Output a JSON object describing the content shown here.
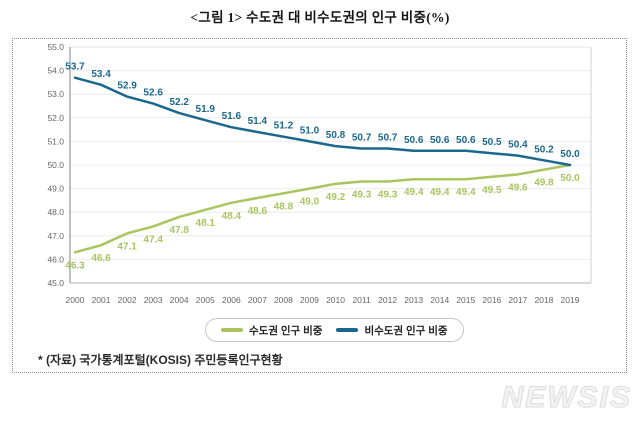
{
  "title": "<그림 1> 수도권 대 비수도권의 인구 비중(%)",
  "chart_data": {
    "type": "line",
    "title": "수도권 대 비수도권의 인구 비중(%)",
    "x": [
      "2000",
      "2001",
      "2002",
      "2003",
      "2004",
      "2005",
      "2006",
      "2007",
      "2008",
      "2009",
      "2010",
      "2011",
      "2012",
      "2013",
      "2014",
      "2015",
      "2016",
      "2017",
      "2018",
      "2019"
    ],
    "series": [
      {
        "name": "수도권 인구 비중",
        "color": "#a8c55e",
        "label_position": "below",
        "values": [
          46.3,
          46.6,
          47.1,
          47.4,
          47.8,
          48.1,
          48.4,
          48.6,
          48.8,
          49.0,
          49.2,
          49.3,
          49.3,
          49.4,
          49.4,
          49.4,
          49.5,
          49.6,
          49.8,
          50.0
        ]
      },
      {
        "name": "비수도권 인구 비중",
        "color": "#1b688f",
        "label_position": "above",
        "values": [
          53.7,
          53.4,
          52.9,
          52.6,
          52.2,
          51.9,
          51.6,
          51.4,
          51.2,
          51.0,
          50.8,
          50.7,
          50.7,
          50.6,
          50.6,
          50.6,
          50.5,
          50.4,
          50.2,
          50.0
        ]
      }
    ],
    "ylim": [
      45.0,
      55.0
    ],
    "ytick_step": 1.0,
    "ytick_labels": [
      "45.0",
      "46.0",
      "47.0",
      "48.0",
      "49.0",
      "50.0",
      "51.0",
      "52.0",
      "53.0",
      "54.0",
      "55.0"
    ],
    "grid": "horizontal",
    "legend_position": "bottom-center",
    "colors": {
      "grid_line": "#ececec",
      "axis_line": "#a6a6a6",
      "tick_text": "#666666"
    }
  },
  "footer": {
    "source_note": "* (자료) 국가통계포털(KOSIS) 주민등록인구현황"
  },
  "watermark": {
    "text": "NEWSIS"
  }
}
